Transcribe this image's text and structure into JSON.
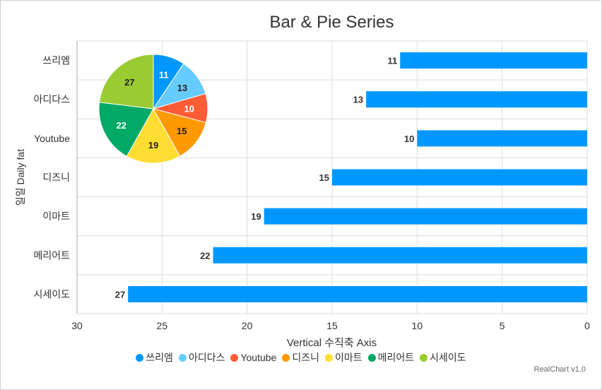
{
  "chart_data": {
    "type": "bar",
    "title": "Bar & Pie Series",
    "xlabel": "Vertical 수직축 Axis",
    "ylabel": "일일 Daily fat",
    "categories": [
      "쓰리엠",
      "아디다스",
      "Youtube",
      "디즈니",
      "이마트",
      "메리어트",
      "시세이도"
    ],
    "series": [
      {
        "type": "bar",
        "orientation": "horizontal",
        "values": [
          11,
          13,
          10,
          15,
          19,
          22,
          27
        ],
        "color": "#0098ff"
      },
      {
        "type": "pie",
        "values": [
          11,
          13,
          10,
          15,
          19,
          22,
          27
        ],
        "colors": [
          "#0098ff",
          "#66ccff",
          "#ff5c35",
          "#ff9900",
          "#ffdd33",
          "#00aa66",
          "#99cc33"
        ]
      }
    ],
    "value_axis": {
      "range": [
        0,
        30
      ],
      "reversed": true,
      "ticks": [
        30,
        25,
        20,
        15,
        10,
        5,
        0
      ]
    },
    "grid": true,
    "legend": {
      "position": "bottom",
      "items": [
        "쓰리엠",
        "아디다스",
        "Youtube",
        "디즈니",
        "이마트",
        "메리어트",
        "시세이도"
      ]
    }
  },
  "credit": "RealChart v1.0"
}
